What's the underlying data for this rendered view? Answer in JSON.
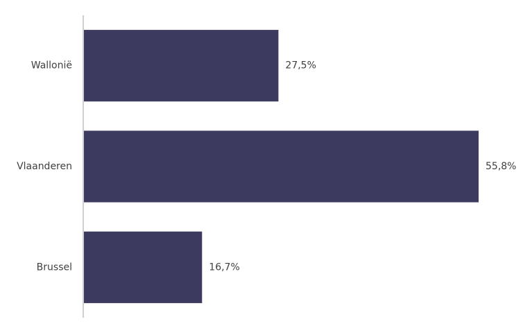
{
  "chart_data": {
    "type": "bar",
    "orientation": "horizontal",
    "categories": [
      "Wallonië",
      "Vlaanderen",
      "Brussel"
    ],
    "values": [
      27.5,
      55.8,
      16.7
    ],
    "value_labels": [
      "27,5%",
      "55,8%",
      "16,7%"
    ],
    "color": "#3d3a5f"
  }
}
